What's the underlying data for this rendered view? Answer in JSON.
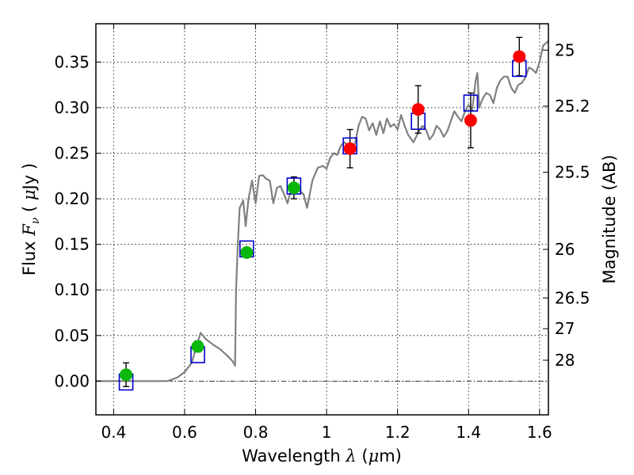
{
  "chart_data": {
    "type": "scatter",
    "title": "",
    "xlabel_parts": [
      "Wavelength  ",
      "λ",
      " (",
      "μ",
      "m)"
    ],
    "ylabel_parts": [
      "Flux  ",
      "F",
      "ν",
      "  ( ",
      "μ",
      "Jy )"
    ],
    "y2label": "Magnitude (AB)",
    "xlim": [
      0.35,
      1.625
    ],
    "ylim": [
      -0.037,
      0.392
    ],
    "grid": true,
    "x_ticks": [
      {
        "value": 0.4,
        "label": "0.4"
      },
      {
        "value": 0.6,
        "label": "0.6"
      },
      {
        "value": 0.8,
        "label": "0.8"
      },
      {
        "value": 1.0,
        "label": "1"
      },
      {
        "value": 1.2,
        "label": "1.2"
      },
      {
        "value": 1.4,
        "label": "1.4"
      },
      {
        "value": 1.6,
        "label": "1.6"
      }
    ],
    "y_ticks": [
      {
        "value": 0.0,
        "label": "0.00"
      },
      {
        "value": 0.05,
        "label": "0.05"
      },
      {
        "value": 0.1,
        "label": "0.10"
      },
      {
        "value": 0.15,
        "label": "0.15"
      },
      {
        "value": 0.2,
        "label": "0.20"
      },
      {
        "value": 0.25,
        "label": "0.25"
      },
      {
        "value": 0.3,
        "label": "0.30"
      },
      {
        "value": 0.35,
        "label": "0.35"
      }
    ],
    "y2_ticks": [
      {
        "flux": 0.3631,
        "label": "25"
      },
      {
        "flux": 0.3016,
        "label": "25.2"
      },
      {
        "flux": 0.2291,
        "label": "25.5"
      },
      {
        "flux": 0.1445,
        "label": "26"
      },
      {
        "flux": 0.0912,
        "label": "26.5"
      },
      {
        "flux": 0.0575,
        "label": "27"
      },
      {
        "flux": 0.0229,
        "label": "28"
      }
    ],
    "observed_optical": [
      {
        "x": 0.435,
        "y": 0.007,
        "err": 0.013
      },
      {
        "x": 0.637,
        "y": 0.038,
        "err": 0.006
      },
      {
        "x": 0.775,
        "y": 0.141,
        "err": 0.005
      },
      {
        "x": 0.908,
        "y": 0.212,
        "err": 0.012
      }
    ],
    "observed_nir": [
      {
        "x": 1.066,
        "y": 0.255,
        "err": 0.021
      },
      {
        "x": 1.258,
        "y": 0.298,
        "err": 0.026
      },
      {
        "x": 1.406,
        "y": 0.286,
        "err": 0.03
      },
      {
        "x": 1.543,
        "y": 0.356,
        "err": 0.021
      }
    ],
    "model_photometry": [
      {
        "x": 0.435,
        "y": -0.001
      },
      {
        "x": 0.637,
        "y": 0.029
      },
      {
        "x": 0.775,
        "y": 0.145
      },
      {
        "x": 0.908,
        "y": 0.214
      },
      {
        "x": 1.066,
        "y": 0.258
      },
      {
        "x": 1.258,
        "y": 0.285
      },
      {
        "x": 1.406,
        "y": 0.305
      },
      {
        "x": 1.543,
        "y": 0.343
      }
    ],
    "model_spectrum": [
      [
        0.35,
        0.0
      ],
      [
        0.55,
        0.0
      ],
      [
        0.56,
        0.001
      ],
      [
        0.58,
        0.004
      ],
      [
        0.6,
        0.01
      ],
      [
        0.62,
        0.02
      ],
      [
        0.635,
        0.04
      ],
      [
        0.645,
        0.053
      ],
      [
        0.66,
        0.046
      ],
      [
        0.68,
        0.04
      ],
      [
        0.7,
        0.035
      ],
      [
        0.72,
        0.028
      ],
      [
        0.735,
        0.022
      ],
      [
        0.742,
        0.017
      ],
      [
        0.745,
        0.1
      ],
      [
        0.75,
        0.15
      ],
      [
        0.755,
        0.19
      ],
      [
        0.765,
        0.198
      ],
      [
        0.772,
        0.17
      ],
      [
        0.78,
        0.2
      ],
      [
        0.79,
        0.22
      ],
      [
        0.8,
        0.195
      ],
      [
        0.81,
        0.225
      ],
      [
        0.82,
        0.226
      ],
      [
        0.83,
        0.222
      ],
      [
        0.84,
        0.22
      ],
      [
        0.85,
        0.195
      ],
      [
        0.86,
        0.212
      ],
      [
        0.87,
        0.214
      ],
      [
        0.88,
        0.205
      ],
      [
        0.89,
        0.195
      ],
      [
        0.9,
        0.21
      ],
      [
        0.91,
        0.212
      ],
      [
        0.92,
        0.21
      ],
      [
        0.935,
        0.205
      ],
      [
        0.945,
        0.19
      ],
      [
        0.96,
        0.22
      ],
      [
        0.975,
        0.234
      ],
      [
        0.99,
        0.236
      ],
      [
        1.0,
        0.233
      ],
      [
        1.01,
        0.245
      ],
      [
        1.02,
        0.25
      ],
      [
        1.03,
        0.248
      ],
      [
        1.04,
        0.258
      ],
      [
        1.05,
        0.262
      ],
      [
        1.06,
        0.258
      ],
      [
        1.07,
        0.255
      ],
      [
        1.08,
        0.26
      ],
      [
        1.09,
        0.28
      ],
      [
        1.1,
        0.29
      ],
      [
        1.11,
        0.288
      ],
      [
        1.12,
        0.275
      ],
      [
        1.13,
        0.283
      ],
      [
        1.14,
        0.27
      ],
      [
        1.15,
        0.285
      ],
      [
        1.16,
        0.272
      ],
      [
        1.17,
        0.288
      ],
      [
        1.18,
        0.279
      ],
      [
        1.19,
        0.282
      ],
      [
        1.2,
        0.276
      ],
      [
        1.21,
        0.292
      ],
      [
        1.22,
        0.28
      ],
      [
        1.23,
        0.27
      ],
      [
        1.245,
        0.262
      ],
      [
        1.26,
        0.274
      ],
      [
        1.27,
        0.28
      ],
      [
        1.28,
        0.276
      ],
      [
        1.29,
        0.265
      ],
      [
        1.3,
        0.27
      ],
      [
        1.31,
        0.28
      ],
      [
        1.32,
        0.276
      ],
      [
        1.33,
        0.268
      ],
      [
        1.34,
        0.274
      ],
      [
        1.35,
        0.285
      ],
      [
        1.36,
        0.296
      ],
      [
        1.37,
        0.29
      ],
      [
        1.38,
        0.285
      ],
      [
        1.39,
        0.296
      ],
      [
        1.4,
        0.303
      ],
      [
        1.41,
        0.296
      ],
      [
        1.42,
        0.33
      ],
      [
        1.425,
        0.338
      ],
      [
        1.43,
        0.3
      ],
      [
        1.44,
        0.31
      ],
      [
        1.45,
        0.316
      ],
      [
        1.46,
        0.314
      ],
      [
        1.47,
        0.305
      ],
      [
        1.48,
        0.322
      ],
      [
        1.49,
        0.33
      ],
      [
        1.5,
        0.334
      ],
      [
        1.51,
        0.334
      ],
      [
        1.52,
        0.322
      ],
      [
        1.53,
        0.316
      ],
      [
        1.54,
        0.325
      ],
      [
        1.55,
        0.327
      ],
      [
        1.56,
        0.333
      ],
      [
        1.57,
        0.344
      ],
      [
        1.58,
        0.342
      ],
      [
        1.59,
        0.338
      ],
      [
        1.6,
        0.35
      ],
      [
        1.61,
        0.368
      ],
      [
        1.625,
        0.373
      ]
    ],
    "colors": {
      "optical": "#0ab70a",
      "nir": "#ff0000",
      "model_box": "#0000cc",
      "spectrum": "#808080",
      "errorbar": "#000000"
    }
  }
}
